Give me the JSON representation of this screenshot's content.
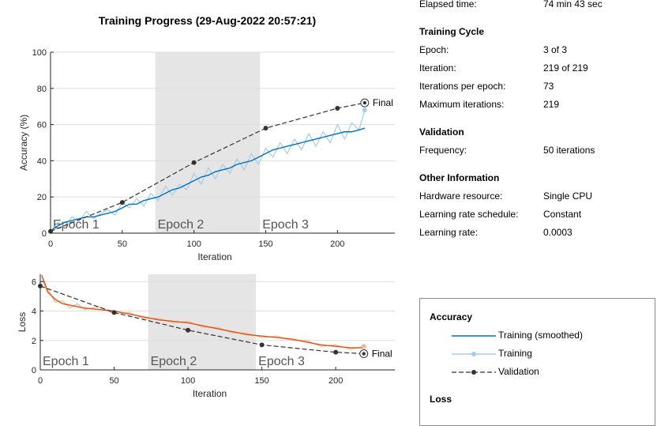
{
  "window": {
    "title": "Training Progress (29-Aug-2022 20:57:21)"
  },
  "info": {
    "elapsed_label": "Elapsed time:",
    "elapsed_value": "74 min 43 sec",
    "training_cycle_heading": "Training Cycle",
    "epoch_label": "Epoch:",
    "epoch_value": "3 of 3",
    "iteration_label": "Iteration:",
    "iteration_value": "219 of 219",
    "ipe_label": "Iterations per epoch:",
    "ipe_value": "73",
    "maxiter_label": "Maximum iterations:",
    "maxiter_value": "219",
    "validation_heading": "Validation",
    "frequency_label": "Frequency:",
    "frequency_value": "50 iterations",
    "other_heading": "Other Information",
    "hardware_label": "Hardware resource:",
    "hardware_value": "Single CPU",
    "lrs_label": "Learning rate schedule:",
    "lrs_value": "Constant",
    "lr_label": "Learning rate:",
    "lr_value": "0.0003"
  },
  "legend": {
    "accuracy_heading": "Accuracy",
    "training_smoothed": "Training (smoothed)",
    "training": "Training",
    "validation": "Validation",
    "loss_heading": "Loss"
  },
  "colors": {
    "accuracy_smoothed": "#0072bd",
    "accuracy_raw": "#a6cbe8",
    "loss_smoothed": "#d95319",
    "loss_raw": "#f4b894",
    "validation": "#333333",
    "epoch_shade": "#e5e5e5",
    "grid": "#dddddd"
  },
  "chart_data": [
    {
      "type": "line",
      "xlabel": "Iteration",
      "ylabel": "Accuracy (%)",
      "xlim": [
        0,
        240
      ],
      "ylim": [
        0,
        100
      ],
      "xticks": [
        0,
        50,
        100,
        150,
        200
      ],
      "yticks": [
        0,
        20,
        40,
        60,
        80,
        100
      ],
      "grid": true,
      "epochs": [
        {
          "label": "Epoch 1",
          "start": 0,
          "end": 73,
          "shaded": false
        },
        {
          "label": "Epoch 2",
          "start": 73,
          "end": 146,
          "shaded": true
        },
        {
          "label": "Epoch 3",
          "start": 146,
          "end": 219,
          "shaded": false
        }
      ],
      "series": [
        {
          "name": "Training (smoothed)",
          "x": [
            1,
            5,
            10,
            15,
            20,
            25,
            30,
            35,
            40,
            45,
            50,
            55,
            60,
            65,
            70,
            75,
            80,
            85,
            90,
            95,
            100,
            105,
            110,
            115,
            120,
            125,
            130,
            135,
            140,
            145,
            150,
            155,
            160,
            165,
            170,
            175,
            180,
            185,
            190,
            195,
            200,
            205,
            210,
            215,
            219
          ],
          "y": [
            2,
            4,
            6,
            7,
            8,
            9,
            9,
            10,
            11,
            12,
            14,
            16,
            16,
            18,
            19,
            20,
            22,
            24,
            25,
            27,
            29,
            31,
            32,
            34,
            35,
            36,
            38,
            39,
            40,
            42,
            44,
            46,
            47,
            48,
            49,
            50,
            51,
            52,
            53,
            54,
            55,
            56,
            56,
            57,
            58
          ]
        },
        {
          "name": "Training",
          "x": [
            1,
            5,
            10,
            15,
            20,
            25,
            30,
            35,
            40,
            45,
            50,
            55,
            60,
            65,
            70,
            75,
            80,
            85,
            90,
            95,
            100,
            105,
            110,
            115,
            120,
            125,
            130,
            135,
            140,
            145,
            150,
            155,
            160,
            165,
            170,
            175,
            180,
            185,
            190,
            195,
            200,
            205,
            210,
            215,
            219
          ],
          "y": [
            1,
            6,
            4,
            9,
            7,
            12,
            8,
            11,
            13,
            10,
            17,
            14,
            19,
            15,
            22,
            18,
            26,
            21,
            27,
            24,
            33,
            27,
            36,
            30,
            38,
            33,
            41,
            35,
            44,
            38,
            47,
            42,
            50,
            44,
            52,
            46,
            55,
            48,
            56,
            50,
            60,
            52,
            61,
            57,
            68
          ]
        },
        {
          "name": "Validation",
          "x": [
            0,
            50,
            100,
            150,
            200,
            219
          ],
          "y": [
            1,
            17,
            39,
            58,
            69,
            72
          ]
        }
      ],
      "annotations": [
        {
          "text": "Final",
          "x": 219,
          "y": 72
        }
      ]
    },
    {
      "type": "line",
      "xlabel": "Iteration",
      "ylabel": "Loss",
      "xlim": [
        0,
        240
      ],
      "ylim": [
        0,
        6.5
      ],
      "xticks": [
        0,
        50,
        100,
        150,
        200
      ],
      "yticks": [
        0,
        2,
        4,
        6
      ],
      "grid": true,
      "epochs": [
        {
          "label": "Epoch 1",
          "start": 0,
          "end": 73,
          "shaded": false
        },
        {
          "label": "Epoch 2",
          "start": 73,
          "end": 146,
          "shaded": true
        },
        {
          "label": "Epoch 3",
          "start": 146,
          "end": 219,
          "shaded": false
        }
      ],
      "series": [
        {
          "name": "Training (smoothed)",
          "x": [
            1,
            3,
            5,
            10,
            15,
            20,
            25,
            30,
            40,
            50,
            60,
            70,
            80,
            90,
            100,
            110,
            120,
            130,
            140,
            150,
            160,
            170,
            180,
            190,
            200,
            210,
            219
          ],
          "y": [
            6.4,
            5.9,
            5.3,
            4.8,
            4.5,
            4.4,
            4.3,
            4.2,
            4.1,
            4.0,
            3.8,
            3.6,
            3.4,
            3.3,
            3.2,
            3.0,
            2.8,
            2.6,
            2.4,
            2.3,
            2.2,
            2.1,
            1.9,
            1.7,
            1.6,
            1.5,
            1.5
          ]
        },
        {
          "name": "Training",
          "x": [
            1,
            3,
            5,
            10,
            15,
            20,
            25,
            30,
            40,
            50,
            60,
            70,
            80,
            90,
            100,
            110,
            120,
            130,
            140,
            150,
            160,
            170,
            180,
            190,
            200,
            210,
            219
          ],
          "y": [
            6.5,
            5.6,
            5.5,
            4.6,
            4.7,
            4.2,
            4.5,
            4.1,
            4.3,
            3.8,
            3.9,
            3.5,
            3.5,
            3.2,
            3.3,
            2.9,
            2.9,
            2.5,
            2.5,
            2.2,
            2.3,
            2.0,
            2.0,
            1.6,
            1.7,
            1.4,
            1.6
          ]
        },
        {
          "name": "Validation",
          "x": [
            0,
            50,
            100,
            150,
            200,
            219
          ],
          "y": [
            5.7,
            3.9,
            2.7,
            1.7,
            1.2,
            1.1
          ]
        }
      ],
      "annotations": [
        {
          "text": "Final",
          "x": 219,
          "y": 1.1
        }
      ]
    }
  ]
}
